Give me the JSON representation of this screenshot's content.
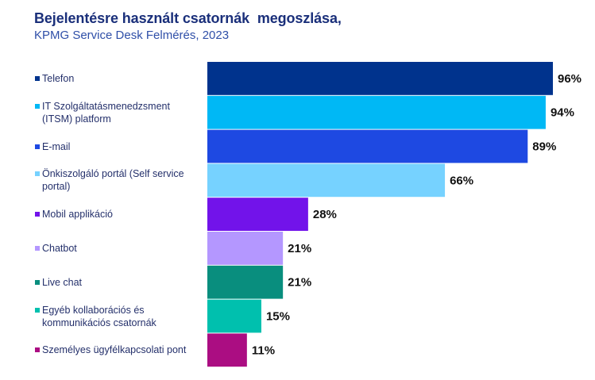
{
  "chart_data": {
    "type": "bar",
    "orientation": "horizontal",
    "title": "Bejelentésre használt csatornák  megoszlása,",
    "subtitle": "KPMG Service Desk Felmérés, 2023",
    "xlabel": "",
    "ylabel": "",
    "xlim": [
      0,
      100
    ],
    "grid": false,
    "legend": "left",
    "categories": [
      "Telefon",
      "IT Szolgáltatásmenedzsment (ITSM) platform",
      "E-mail",
      "Önkiszolgáló portál (Self service portal)",
      "Mobil applikáció",
      "Chatbot",
      "Live chat",
      "Egyéb kollaborációs és kommunikációs csatornák",
      "Személyes ügyfélkapcsolati pont"
    ],
    "legend_lines": [
      [
        "Telefon"
      ],
      [
        "IT Szolgáltatásmenedzsment",
        "(ITSM) platform"
      ],
      [
        "E-mail"
      ],
      [
        "Önkiszolgáló portál (Self service",
        "portal)"
      ],
      [
        "Mobil applikáció"
      ],
      [
        "Chatbot"
      ],
      [
        "Live chat"
      ],
      [
        "Egyéb kollaborációs és",
        "kommunikációs csatornák"
      ],
      [
        "Személyes ügyfélkapcsolati pont"
      ]
    ],
    "values": [
      96,
      94,
      89,
      66,
      28,
      21,
      21,
      15,
      11
    ],
    "value_labels": [
      "96%",
      "94%",
      "89%",
      "66%",
      "28%",
      "21%",
      "21%",
      "15%",
      "11%"
    ],
    "colors": [
      "#00338d",
      "#00b8f5",
      "#1e49e2",
      "#76d2ff",
      "#7213ea",
      "#b497ff",
      "#098e7e",
      "#00c0ae",
      "#ab0d82"
    ]
  }
}
